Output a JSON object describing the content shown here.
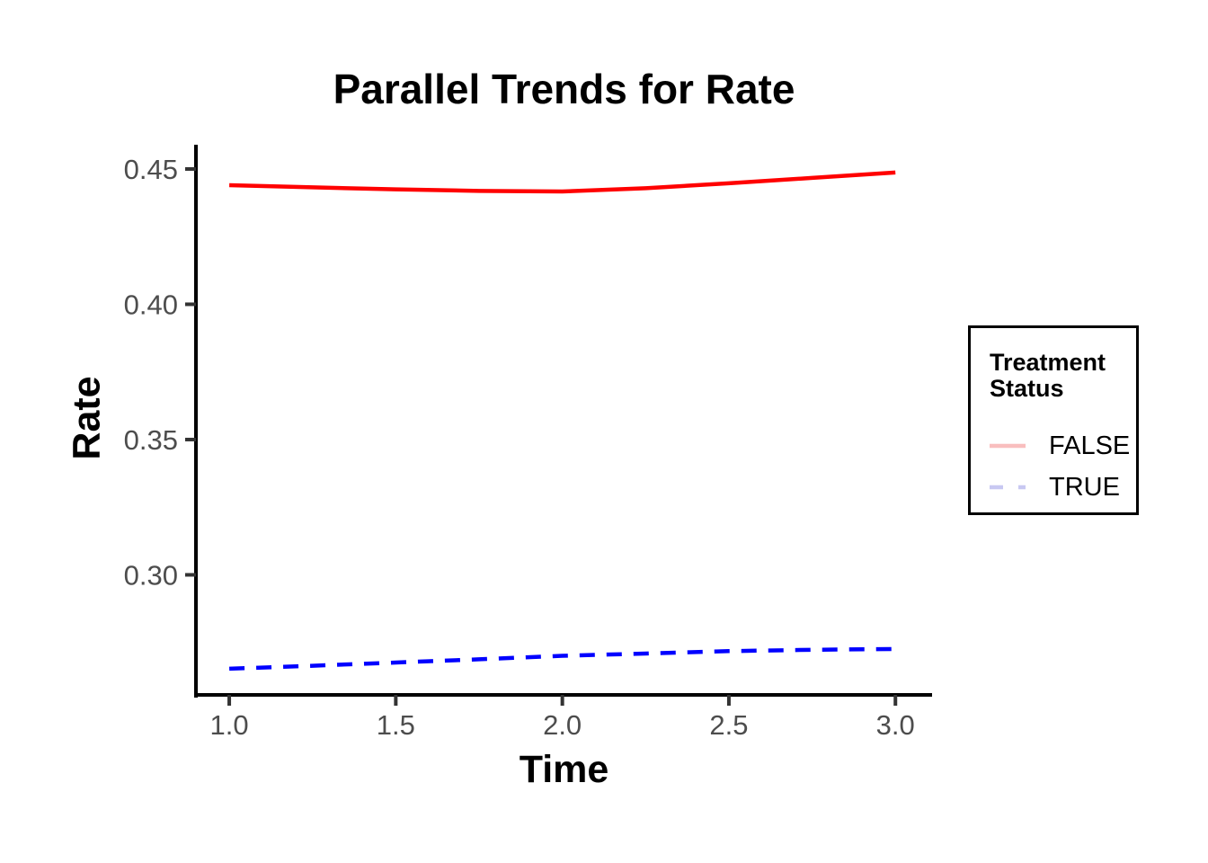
{
  "chart_data": {
    "type": "line",
    "title": "Parallel Trends for Rate",
    "xlabel": "Time",
    "ylabel": "Rate",
    "x_ticks": [
      "1.0",
      "1.5",
      "2.0",
      "2.5",
      "3.0"
    ],
    "y_ticks": [
      "0.45",
      "0.40",
      "0.35",
      "0.30"
    ],
    "xlim": [
      0.9,
      3.11
    ],
    "ylim": [
      0.2553,
      0.4583
    ],
    "grid": false,
    "background": "#ffffff",
    "x": [
      1.0,
      1.25,
      1.5,
      1.75,
      2.0,
      2.25,
      2.5,
      2.75,
      3.0
    ],
    "series": [
      {
        "name": "FALSE",
        "color": "#ff0000",
        "linetype": "solid",
        "legend_key_color": "#f9bebe",
        "values": [
          0.444,
          0.4432,
          0.4425,
          0.4419,
          0.4417,
          0.4429,
          0.4447,
          0.4467,
          0.4487
        ]
      },
      {
        "name": "TRUE",
        "color": "#0000ff",
        "linetype": "dashed",
        "legend_key_color": "#c8c8f2",
        "values": [
          0.2653,
          0.2664,
          0.2676,
          0.2688,
          0.2701,
          0.2709,
          0.2718,
          0.2723,
          0.2726
        ]
      }
    ],
    "legend": {
      "title": "Treatment Status",
      "position": "right",
      "entries": [
        "FALSE",
        "TRUE"
      ]
    },
    "style": {
      "axis_color": "#000000",
      "tick_color": "#333333",
      "tick_label_color": "#4d4d4d"
    }
  }
}
